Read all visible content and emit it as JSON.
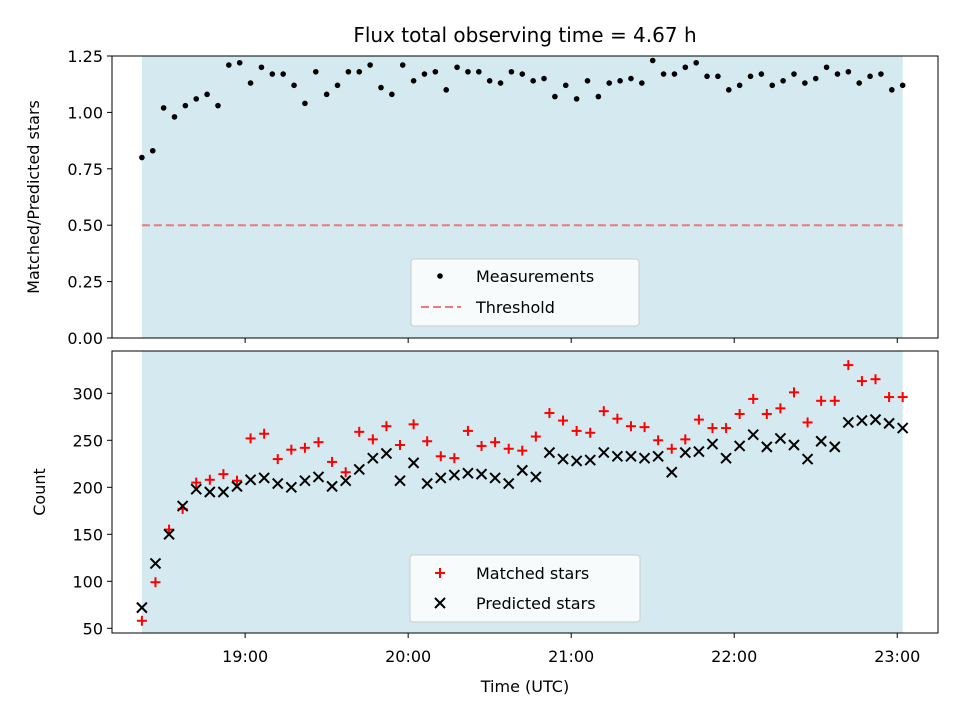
{
  "chart_data": [
    {
      "type": "scatter",
      "title": "Flux total observing time = 4.67 h",
      "xlabel": "",
      "ylabel": "Matched/Predicted stars",
      "xlim": [
        "18:11",
        "23:15"
      ],
      "ylim": [
        0,
        1.25
      ],
      "yticks": [
        "0.00",
        "0.25",
        "0.50",
        "0.75",
        "1.00",
        "1.25"
      ],
      "xticks": [
        "19:00",
        "20:00",
        "21:00",
        "22:00",
        "23:00"
      ],
      "observing_span": [
        "18:22",
        "23:02"
      ],
      "legend": "lower-center",
      "grid": false,
      "colors": {
        "span": "#d4eaf0",
        "measurements": "#000000",
        "threshold": "#f07878"
      },
      "series": [
        {
          "name": "Measurements",
          "x": [
            "18:22",
            "18:26",
            "18:30",
            "18:34",
            "18:38",
            "18:42",
            "18:46",
            "18:50",
            "18:54",
            "18:58",
            "19:02",
            "19:06",
            "19:10",
            "19:14",
            "19:18",
            "19:22",
            "19:26",
            "19:30",
            "19:34",
            "19:38",
            "19:42",
            "19:46",
            "19:50",
            "19:54",
            "19:58",
            "20:02",
            "20:06",
            "20:10",
            "20:14",
            "20:18",
            "20:22",
            "20:26",
            "20:30",
            "20:34",
            "20:38",
            "20:42",
            "20:46",
            "20:50",
            "20:54",
            "20:58",
            "21:02",
            "21:06",
            "21:10",
            "21:14",
            "21:18",
            "21:22",
            "21:26",
            "21:30",
            "21:34",
            "21:38",
            "21:42",
            "21:46",
            "21:50",
            "21:54",
            "21:58",
            "22:02",
            "22:06",
            "22:10",
            "22:14",
            "22:18",
            "22:22",
            "22:26",
            "22:30",
            "22:34",
            "22:38",
            "22:42",
            "22:46",
            "22:50",
            "22:54",
            "22:58",
            "23:02"
          ],
          "values": [
            0.8,
            0.83,
            1.02,
            0.98,
            1.03,
            1.06,
            1.08,
            1.03,
            1.21,
            1.22,
            1.13,
            1.2,
            1.17,
            1.17,
            1.12,
            1.04,
            1.18,
            1.08,
            1.12,
            1.18,
            1.18,
            1.21,
            1.11,
            1.08,
            1.21,
            1.14,
            1.17,
            1.18,
            1.1,
            1.2,
            1.18,
            1.18,
            1.14,
            1.13,
            1.18,
            1.17,
            1.14,
            1.15,
            1.07,
            1.12,
            1.06,
            1.14,
            1.07,
            1.13,
            1.14,
            1.15,
            1.13,
            1.23,
            1.17,
            1.17,
            1.2,
            1.22,
            1.16,
            1.16,
            1.1,
            1.12,
            1.16,
            1.17,
            1.12,
            1.14,
            1.17,
            1.13,
            1.15,
            1.2,
            1.17,
            1.18,
            1.13,
            1.16,
            1.17,
            1.1,
            1.12
          ]
        },
        {
          "name": "Threshold",
          "x": [
            "18:22",
            "23:02"
          ],
          "values": [
            0.5,
            0.5
          ]
        }
      ]
    },
    {
      "type": "scatter",
      "title": "",
      "xlabel": "Time (UTC)",
      "ylabel": "Count",
      "xlim": [
        "18:11",
        "23:15"
      ],
      "ylim": [
        45,
        345
      ],
      "yticks": [
        "50",
        "100",
        "150",
        "200",
        "250",
        "300"
      ],
      "xticks": [
        "19:00",
        "20:00",
        "21:00",
        "22:00",
        "23:00"
      ],
      "observing_span": [
        "18:22",
        "23:02"
      ],
      "legend": "lower-center",
      "grid": false,
      "colors": {
        "span": "#d4eaf0",
        "matched": "#ff0000",
        "predicted": "#000000"
      },
      "series": [
        {
          "name": "Matched stars",
          "x": [
            "18:22",
            "18:27",
            "18:32",
            "18:37",
            "18:42",
            "18:47",
            "18:52",
            "18:57",
            "19:02",
            "19:07",
            "19:12",
            "19:17",
            "19:22",
            "19:27",
            "19:32",
            "19:37",
            "19:42",
            "19:47",
            "19:52",
            "19:57",
            "20:02",
            "20:07",
            "20:12",
            "20:17",
            "20:22",
            "20:27",
            "20:32",
            "20:37",
            "20:42",
            "20:47",
            "20:52",
            "20:57",
            "21:02",
            "21:07",
            "21:12",
            "21:17",
            "21:22",
            "21:27",
            "21:32",
            "21:37",
            "21:42",
            "21:47",
            "21:52",
            "21:57",
            "22:02",
            "22:07",
            "22:12",
            "22:17",
            "22:22",
            "22:27",
            "22:32",
            "22:37",
            "22:42",
            "22:47",
            "22:52",
            "22:57",
            "23:02"
          ],
          "values": [
            58,
            99,
            155,
            177,
            205,
            208,
            214,
            207,
            252,
            257,
            230,
            240,
            242,
            248,
            227,
            216,
            259,
            251,
            265,
            245,
            267,
            249,
            233,
            231,
            260,
            244,
            248,
            241,
            239,
            254,
            279,
            271,
            260,
            258,
            281,
            273,
            265,
            264,
            250,
            241,
            251,
            272,
            263,
            263,
            278,
            294,
            278,
            284,
            301,
            269,
            292,
            292,
            330,
            313,
            315,
            296,
            296
          ]
        },
        {
          "name": "Predicted stars",
          "x": [
            "18:22",
            "18:27",
            "18:32",
            "18:37",
            "18:42",
            "18:47",
            "18:52",
            "18:57",
            "19:02",
            "19:07",
            "19:12",
            "19:17",
            "19:22",
            "19:27",
            "19:32",
            "19:37",
            "19:42",
            "19:47",
            "19:52",
            "19:57",
            "20:02",
            "20:07",
            "20:12",
            "20:17",
            "20:22",
            "20:27",
            "20:32",
            "20:37",
            "20:42",
            "20:47",
            "20:52",
            "20:57",
            "21:02",
            "21:07",
            "21:12",
            "21:17",
            "21:22",
            "21:27",
            "21:32",
            "21:37",
            "21:42",
            "21:47",
            "21:52",
            "21:57",
            "22:02",
            "22:07",
            "22:12",
            "22:17",
            "22:22",
            "22:27",
            "22:32",
            "22:37",
            "22:42",
            "22:47",
            "22:52",
            "22:57",
            "23:02"
          ],
          "values": [
            72,
            119,
            150,
            180,
            198,
            195,
            195,
            201,
            208,
            210,
            204,
            200,
            207,
            211,
            201,
            207,
            219,
            231,
            236,
            207,
            226,
            204,
            210,
            213,
            215,
            214,
            210,
            204,
            218,
            211,
            237,
            230,
            228,
            229,
            237,
            233,
            233,
            231,
            233,
            216,
            237,
            238,
            246,
            231,
            244,
            256,
            243,
            252,
            245,
            230,
            249,
            243,
            269,
            271,
            272,
            268,
            263
          ]
        }
      ]
    }
  ]
}
